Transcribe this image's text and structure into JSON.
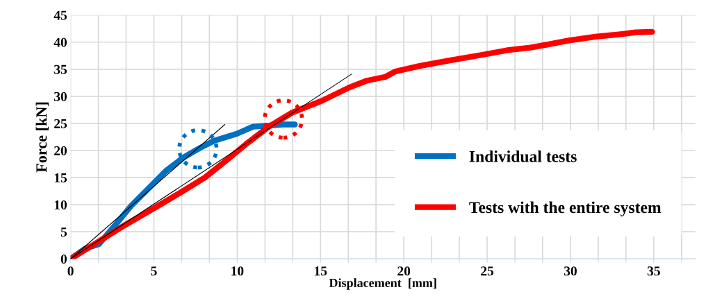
{
  "chart_data": {
    "type": "line",
    "xlabel": "Displacement  [mm]",
    "ylabel": "Force [kN]",
    "xlim": [
      0,
      37.5
    ],
    "ylim": [
      0,
      45
    ],
    "xticks": [
      0,
      {
        "value": 1.67,
        "label": null
      },
      {
        "value": 3.33,
        "label": null
      },
      5,
      {
        "value": 6.67,
        "label": null
      },
      {
        "value": 8.33,
        "label": null
      },
      10,
      {
        "value": 11.67,
        "label": null
      },
      {
        "value": 13.33,
        "label": null
      },
      15,
      {
        "value": 16.67,
        "label": null
      },
      {
        "value": 18.33,
        "label": null
      },
      20,
      {
        "value": 21.67,
        "label": null
      },
      {
        "value": 23.33,
        "label": null
      },
      25,
      {
        "value": 26.67,
        "label": null
      },
      {
        "value": 28.33,
        "label": null
      },
      30,
      {
        "value": 31.67,
        "label": null
      },
      {
        "value": 33.33,
        "label": null
      },
      35,
      {
        "value": 36.67,
        "label": null
      }
    ],
    "yticks": [
      0,
      5,
      10,
      15,
      20,
      25,
      30,
      35,
      40,
      45
    ],
    "grid": true,
    "legend": "bottom right",
    "marker": "none",
    "line_style": "solid",
    "series": [
      {
        "name": "Individual tests",
        "color": "#0070c0",
        "x": [
          0,
          0.88,
          1.7,
          2.67,
          3.64,
          4.74,
          5.71,
          6.82,
          7.78,
          8.61,
          9.99,
          10.95,
          11.9,
          12.7,
          13.46
        ],
        "values": [
          0,
          1.9,
          2.7,
          6.2,
          9.8,
          13.2,
          16.2,
          18.8,
          20.5,
          21.8,
          23.1,
          24.4,
          24.6,
          24.8,
          24.8
        ]
      },
      {
        "name": "Tests with the entire system",
        "color": "#ff0000",
        "x": [
          0,
          1.58,
          3.24,
          5.03,
          6.68,
          8.06,
          9.44,
          10.54,
          11.9,
          13.3,
          15.1,
          16.7,
          17.8,
          18.9,
          19.5,
          20.95,
          22.7,
          24.6,
          26.2,
          27.6,
          28.7,
          29.9,
          31.5,
          33.1,
          33.9,
          34.9
        ],
        "values": [
          0,
          3.0,
          6.2,
          9.4,
          12.4,
          15.0,
          18.4,
          21.2,
          24.4,
          27.0,
          29.2,
          31.6,
          32.9,
          33.6,
          34.6,
          35.6,
          36.6,
          37.6,
          38.5,
          39.0,
          39.6,
          40.3,
          41.0,
          41.5,
          41.8,
          41.9
        ]
      },
      {
        "type": "line",
        "color": "#000000",
        "x": [
          0,
          9.26
        ],
        "values": [
          0,
          24.8
        ]
      },
      {
        "type": "line",
        "color": "#000000",
        "x": [
          0,
          16.86
        ],
        "values": [
          0,
          34.1
        ]
      },
      {
        "type": "scatter",
        "colors": [
          "#0070c0",
          "#ff0000"
        ],
        "x": [
          7.64,
          12.77
        ],
        "values": [
          20.3,
          25.8
        ],
        "marker": "circle",
        "line_style": "dotted"
      }
    ]
  }
}
